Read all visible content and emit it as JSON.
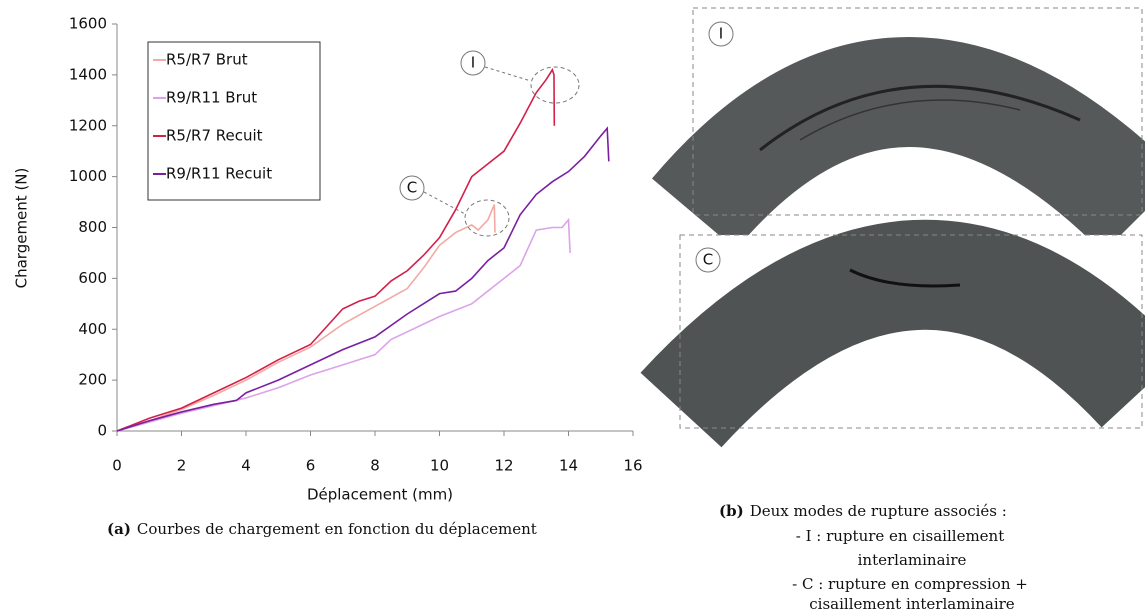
{
  "chart_data": {
    "type": "line",
    "xlabel": "Déplacement (mm)",
    "ylabel": "Chargement (N)",
    "xlim": [
      0,
      16
    ],
    "xticks": [
      0,
      2,
      4,
      6,
      8,
      10,
      12,
      14,
      16
    ],
    "ylim": [
      0,
      1600
    ],
    "yticks": [
      0,
      200,
      400,
      600,
      800,
      1000,
      1200,
      1400,
      1600
    ],
    "grid": false,
    "legend": "upper left",
    "annotations": [
      "I",
      "C"
    ],
    "series": [
      {
        "name": "R5/R7 Brut",
        "color": "#f4a9a3",
        "x": [
          0,
          1,
          2,
          3,
          4,
          5,
          6,
          7,
          8,
          9,
          9.5,
          10,
          10.5,
          11,
          11.2,
          11.5,
          11.7,
          11.72
        ],
        "values": [
          0,
          40,
          85,
          140,
          200,
          270,
          330,
          420,
          490,
          560,
          640,
          730,
          780,
          810,
          790,
          830,
          890,
          780
        ]
      },
      {
        "name": "R9/R11 Brut",
        "color": "#dca3ea",
        "x": [
          0,
          1,
          2,
          3,
          4,
          5,
          6,
          7,
          8,
          8.5,
          9,
          10,
          11,
          12,
          12.5,
          13,
          13.5,
          13.8,
          14,
          14.05
        ],
        "values": [
          0,
          35,
          70,
          100,
          130,
          170,
          220,
          260,
          300,
          360,
          390,
          450,
          500,
          600,
          650,
          790,
          800,
          800,
          830,
          700
        ]
      },
      {
        "name": "R5/R7 Recuit",
        "color": "#d2204a",
        "x": [
          0,
          1,
          2,
          3,
          4,
          5,
          6,
          7,
          7.5,
          8,
          8.5,
          9,
          9.5,
          10,
          10.5,
          11,
          11.5,
          12,
          12.5,
          13,
          13.3,
          13.5,
          13.55,
          13.56
        ],
        "values": [
          0,
          50,
          90,
          150,
          210,
          280,
          340,
          480,
          510,
          530,
          590,
          630,
          690,
          760,
          870,
          1000,
          1050,
          1100,
          1210,
          1330,
          1380,
          1420,
          1400,
          1200
        ]
      },
      {
        "name": "R9/R11 Recuit",
        "color": "#7b1fa2",
        "x": [
          0,
          1,
          2,
          3,
          3.7,
          4,
          5,
          6,
          7,
          8,
          9,
          10,
          10.5,
          11,
          11.5,
          12,
          12.5,
          13,
          13.5,
          14,
          14.5,
          15,
          15.2,
          15.25
        ],
        "values": [
          0,
          40,
          75,
          105,
          120,
          150,
          200,
          260,
          320,
          370,
          460,
          540,
          550,
          600,
          670,
          720,
          850,
          930,
          980,
          1020,
          1080,
          1160,
          1190,
          1060
        ]
      }
    ]
  },
  "caption_a": {
    "label": "(a)",
    "text": "Courbes de chargement en fonction du déplacement"
  },
  "caption_b": {
    "label": "(b)",
    "lines": [
      "Deux modes de rupture associés :",
      "- I : rupture en cisaillement",
      "interlaminaire",
      "- C : rupture en compression +",
      "cisaillement interlaminaire"
    ]
  }
}
